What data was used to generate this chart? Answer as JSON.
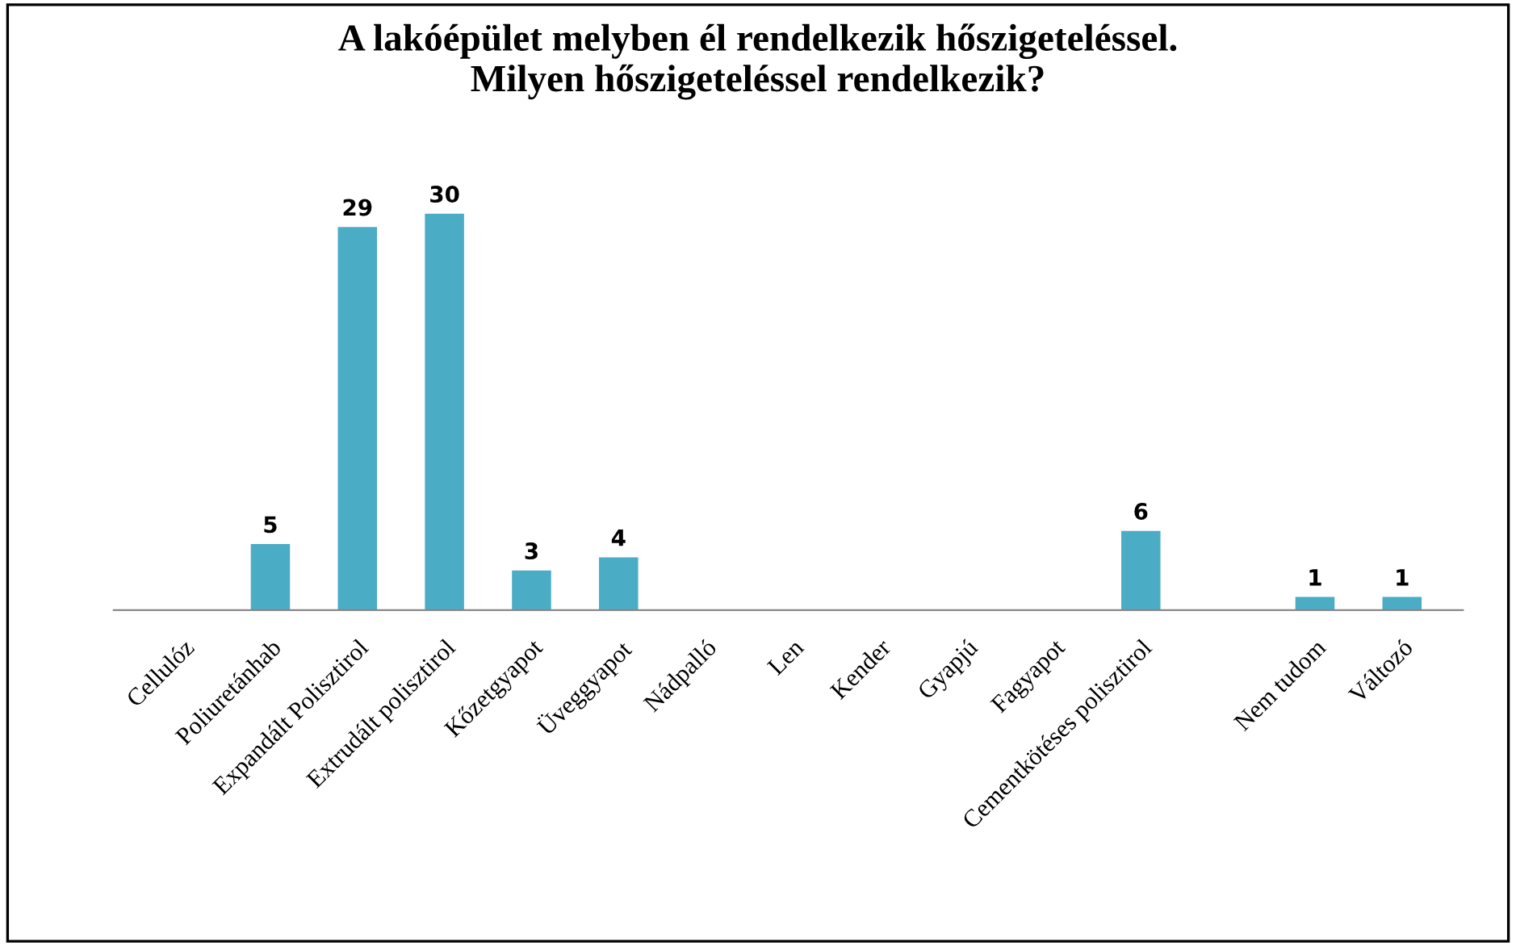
{
  "chart_data": {
    "type": "bar",
    "title": "A lakóépület melyben él rendelkezik hőszigeteléssel.\nMilyen hőszigeteléssel rendelkezik?",
    "categories": [
      "Cellulóz",
      "Poliuretánhab",
      "Expandált Polisztirol",
      "Extrudált polisztirol",
      "Kőzetgyapot",
      "Üveggyapot",
      "Nádpalló",
      "Len",
      "Kender",
      "Gyapjú",
      "Fagyapot",
      "Cementkötéses polisztirol",
      null,
      "Nem tudom",
      "Változó"
    ],
    "values": [
      0,
      5,
      29,
      30,
      3,
      4,
      0,
      0,
      0,
      0,
      0,
      6,
      0,
      1,
      1
    ],
    "value_labels": [
      null,
      "5",
      "29",
      "30",
      "3",
      "4",
      null,
      null,
      null,
      null,
      null,
      "6",
      null,
      "1",
      "1"
    ],
    "color": "#4bacc6",
    "grid": false,
    "legend": false
  }
}
